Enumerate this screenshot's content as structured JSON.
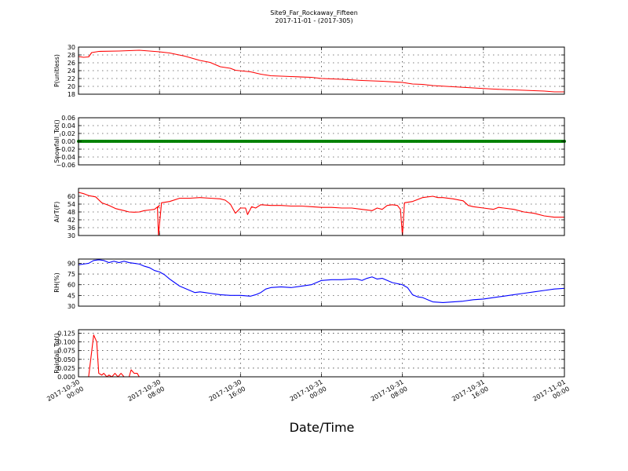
{
  "title_lines": [
    "Site9_Far_Rockaway_Fifteen",
    "2017-11-01 - (2017-305)"
  ],
  "x_label": "Date/Time",
  "x_tick_labels": [
    [
      "2017-10-30",
      "00:00"
    ],
    [
      "2017-10-30",
      "08:00"
    ],
    [
      "2017-10-30",
      "16:00"
    ],
    [
      "2017-10-31",
      "00:00"
    ],
    [
      "2017-10-31",
      "08:00"
    ],
    [
      "2017-10-31",
      "16:00"
    ],
    [
      "2017-11-01",
      "00:00"
    ]
  ],
  "chart_data": [
    {
      "type": "line",
      "ylabel": "P(unitless)",
      "ylim": [
        18,
        30
      ],
      "yticks": [
        "18",
        "20",
        "22",
        "24",
        "26",
        "28",
        "30"
      ],
      "color": "#ff0000",
      "grid": true,
      "x_range_hours": [
        0,
        48
      ],
      "points": [
        [
          0,
          27.6
        ],
        [
          0.5,
          27.4
        ],
        [
          1,
          27.5
        ],
        [
          1.3,
          28.6
        ],
        [
          2,
          28.9
        ],
        [
          4,
          29.0
        ],
        [
          6,
          29.2
        ],
        [
          8,
          28.8
        ],
        [
          9,
          28.5
        ],
        [
          10.5,
          27.7
        ],
        [
          12,
          26.6
        ],
        [
          13,
          26.1
        ],
        [
          14,
          25.0
        ],
        [
          15,
          24.6
        ],
        [
          15.5,
          24.1
        ],
        [
          17,
          23.7
        ],
        [
          18,
          23.1
        ],
        [
          19,
          22.7
        ],
        [
          21,
          22.5
        ],
        [
          23,
          22.3
        ],
        [
          24,
          22.0
        ],
        [
          26,
          21.8
        ],
        [
          28,
          21.5
        ],
        [
          30,
          21.3
        ],
        [
          32,
          21.0
        ],
        [
          33,
          20.6
        ],
        [
          34,
          20.5
        ],
        [
          35,
          20.2
        ],
        [
          37,
          19.9
        ],
        [
          39,
          19.6
        ],
        [
          41,
          19.3
        ],
        [
          43,
          19.1
        ],
        [
          45,
          18.9
        ],
        [
          46,
          18.8
        ],
        [
          47,
          18.6
        ],
        [
          48,
          18.6
        ]
      ]
    },
    {
      "type": "scatter",
      "ylabel": "Snowfall_Tot()",
      "ylim": [
        -0.06,
        0.06
      ],
      "yticks": [
        "−0.06",
        "−0.04",
        "−0.02",
        "0.00",
        "0.02",
        "0.04",
        "0.06"
      ],
      "color": "#008000",
      "grid": true,
      "x_range_hours": [
        0,
        48
      ],
      "constant_value": 0.0,
      "point_count": 290
    },
    {
      "type": "line",
      "ylabel": "AirT(F)",
      "ylim": [
        30,
        66
      ],
      "yticks": [
        "30",
        "36",
        "42",
        "48",
        "54",
        "60"
      ],
      "color": "#ff0000",
      "grid": true,
      "x_range_hours": [
        0,
        48
      ],
      "points": [
        [
          0,
          63
        ],
        [
          0.5,
          62
        ],
        [
          1,
          60.5
        ],
        [
          1.7,
          59.5
        ],
        [
          2.3,
          55
        ],
        [
          3,
          53
        ],
        [
          3.7,
          50.5
        ],
        [
          4.5,
          49
        ],
        [
          5,
          48
        ],
        [
          5.5,
          47.8
        ],
        [
          6,
          48
        ],
        [
          6.5,
          49
        ],
        [
          7,
          49.5
        ],
        [
          7.5,
          50
        ],
        [
          8,
          53
        ],
        [
          7.8,
          51
        ],
        [
          7.9,
          30
        ],
        [
          8.2,
          55
        ],
        [
          9,
          56
        ],
        [
          10,
          58.5
        ],
        [
          11,
          58.5
        ],
        [
          12,
          59
        ],
        [
          13,
          58.5
        ],
        [
          14,
          58
        ],
        [
          14.5,
          57
        ],
        [
          15,
          54
        ],
        [
          15.5,
          47
        ],
        [
          16,
          51
        ],
        [
          16.5,
          51
        ],
        [
          16.7,
          46
        ],
        [
          17.1,
          52
        ],
        [
          17.5,
          51
        ],
        [
          18,
          53.5
        ],
        [
          19,
          53
        ],
        [
          20,
          53
        ],
        [
          21,
          52.5
        ],
        [
          22,
          52.5
        ],
        [
          23,
          52
        ],
        [
          24,
          51.5
        ],
        [
          25,
          51.5
        ],
        [
          26,
          51
        ],
        [
          27,
          51
        ],
        [
          28,
          50
        ],
        [
          29,
          49
        ],
        [
          29.5,
          51
        ],
        [
          30,
          50
        ],
        [
          30.5,
          53
        ],
        [
          31,
          53.5
        ],
        [
          31.5,
          53
        ],
        [
          31.8,
          50
        ],
        [
          32,
          30
        ],
        [
          32.2,
          55
        ],
        [
          33,
          56
        ],
        [
          34,
          59
        ],
        [
          35,
          60
        ],
        [
          35.5,
          59
        ],
        [
          36,
          59
        ],
        [
          37,
          58
        ],
        [
          38,
          56.5
        ],
        [
          38.5,
          53
        ],
        [
          39,
          52
        ],
        [
          40,
          51
        ],
        [
          41,
          50
        ],
        [
          41.5,
          51.5
        ],
        [
          42,
          51
        ],
        [
          43,
          50
        ],
        [
          44,
          48
        ],
        [
          45,
          47
        ],
        [
          46,
          45
        ],
        [
          47,
          44
        ],
        [
          48,
          44
        ]
      ]
    },
    {
      "type": "line",
      "ylabel": "RH(%)",
      "ylim": [
        30,
        96
      ],
      "yticks": [
        "30",
        "45",
        "60",
        "75",
        "90"
      ],
      "color": "#0000ff",
      "grid": true,
      "x_range_hours": [
        0,
        48
      ],
      "points": [
        [
          0,
          88
        ],
        [
          0.5,
          89
        ],
        [
          1,
          90
        ],
        [
          1.5,
          94
        ],
        [
          2,
          95
        ],
        [
          2.5,
          94
        ],
        [
          3,
          91
        ],
        [
          3.5,
          93
        ],
        [
          4,
          91
        ],
        [
          4.5,
          93
        ],
        [
          5,
          91
        ],
        [
          5.5,
          90
        ],
        [
          6,
          89
        ],
        [
          6.5,
          86
        ],
        [
          7,
          84
        ],
        [
          7.5,
          80
        ],
        [
          8,
          78
        ],
        [
          8.5,
          74
        ],
        [
          9,
          68
        ],
        [
          9.5,
          63
        ],
        [
          10,
          58
        ],
        [
          10.5,
          55
        ],
        [
          11,
          52
        ],
        [
          11.5,
          49
        ],
        [
          12,
          50
        ],
        [
          12.5,
          49
        ],
        [
          13,
          48
        ],
        [
          14,
          46
        ],
        [
          15,
          45
        ],
        [
          16,
          45
        ],
        [
          17,
          44
        ],
        [
          17.5,
          46
        ],
        [
          18,
          49
        ],
        [
          18.5,
          54
        ],
        [
          19,
          56
        ],
        [
          20,
          57
        ],
        [
          21,
          56
        ],
        [
          22,
          58
        ],
        [
          23,
          60
        ],
        [
          23.5,
          63
        ],
        [
          24,
          66
        ],
        [
          25,
          67
        ],
        [
          26,
          67
        ],
        [
          27,
          68
        ],
        [
          27.5,
          68
        ],
        [
          28,
          66
        ],
        [
          28.5,
          69
        ],
        [
          29,
          71
        ],
        [
          29.5,
          68
        ],
        [
          30,
          69
        ],
        [
          30.5,
          66
        ],
        [
          31,
          63
        ],
        [
          32,
          60
        ],
        [
          32.5,
          56
        ],
        [
          33,
          46
        ],
        [
          33.5,
          43
        ],
        [
          34,
          42
        ],
        [
          34.5,
          39
        ],
        [
          35,
          36
        ],
        [
          36,
          35
        ],
        [
          37,
          36
        ],
        [
          38,
          37
        ],
        [
          39,
          39
        ],
        [
          40,
          40
        ],
        [
          41,
          42
        ],
        [
          42,
          44
        ],
        [
          43,
          46
        ],
        [
          44,
          48
        ],
        [
          45,
          50
        ],
        [
          46,
          52
        ],
        [
          47,
          54
        ],
        [
          48,
          55
        ]
      ]
    },
    {
      "type": "line",
      "ylabel": "Rainfall_Tot()",
      "ylim": [
        0,
        0.135
      ],
      "yticks": [
        "0.000",
        "0.025",
        "0.050",
        "0.075",
        "0.100",
        "0.125"
      ],
      "color": "#ff0000",
      "grid": true,
      "x_range_hours": [
        0,
        48
      ],
      "points": [
        [
          0,
          0
        ],
        [
          1,
          0
        ],
        [
          1.5,
          0.12
        ],
        [
          1.8,
          0.1
        ],
        [
          2,
          0.01
        ],
        [
          2.3,
          0.005
        ],
        [
          2.5,
          0.01
        ],
        [
          2.8,
          0
        ],
        [
          3,
          0.005
        ],
        [
          3.3,
          0
        ],
        [
          3.6,
          0.01
        ],
        [
          3.9,
          0
        ],
        [
          4.2,
          0.01
        ],
        [
          4.5,
          0
        ],
        [
          5,
          0
        ],
        [
          5.2,
          0.02
        ],
        [
          5.5,
          0.01
        ],
        [
          5.8,
          0.01
        ],
        [
          6,
          0
        ],
        [
          48,
          0
        ]
      ]
    }
  ]
}
